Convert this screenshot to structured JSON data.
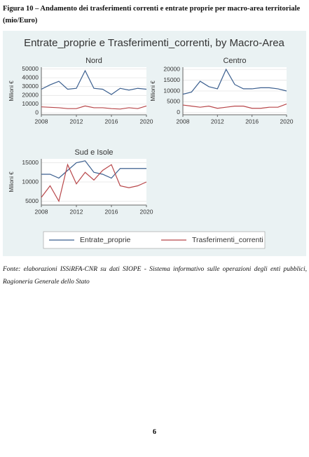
{
  "caption": "Figura 10 – Andamento dei trasferimenti correnti e entrate proprie per macro-area territoriale (mio/Euro)",
  "figure_title": "Entrate_proprie e Trasferimenti_correnti, by Macro-Area",
  "chart_data": [
    {
      "type": "line",
      "title": "Nord",
      "ylabel": "Milioni €",
      "x": [
        2008,
        2009,
        2010,
        2011,
        2012,
        2013,
        2014,
        2015,
        2016,
        2017,
        2018,
        2019,
        2020
      ],
      "xlim": [
        2008,
        2020
      ],
      "xticks": [
        2008,
        2012,
        2016,
        2020
      ],
      "ylim": [
        -2000,
        52000
      ],
      "yticks": [
        0,
        10000,
        20000,
        30000,
        40000,
        50000
      ],
      "series": [
        {
          "name": "Entrate_proprie",
          "color": "#3b5f8f",
          "values": [
            27000,
            32000,
            36000,
            27000,
            28000,
            48000,
            28000,
            27000,
            21000,
            28000,
            26000,
            28000,
            27000
          ]
        },
        {
          "name": "Trasferimenti_correnti",
          "color": "#b8474a",
          "values": [
            7000,
            6500,
            6000,
            5000,
            5000,
            8000,
            6000,
            6000,
            5000,
            4500,
            6000,
            5000,
            8000
          ]
        }
      ]
    },
    {
      "type": "line",
      "title": "Centro",
      "ylabel": "Milioni €",
      "x": [
        2008,
        2009,
        2010,
        2011,
        2012,
        2013,
        2014,
        2015,
        2016,
        2017,
        2018,
        2019,
        2020
      ],
      "xlim": [
        2008,
        2020
      ],
      "xticks": [
        2008,
        2012,
        2016,
        2020
      ],
      "ylim": [
        -1000,
        21000
      ],
      "yticks": [
        0,
        5000,
        10000,
        15000,
        20000
      ],
      "series": [
        {
          "name": "Entrate_proprie",
          "color": "#3b5f8f",
          "values": [
            8500,
            9500,
            14500,
            12000,
            11000,
            20000,
            13000,
            11000,
            11000,
            11500,
            11500,
            11000,
            10000
          ]
        },
        {
          "name": "Trasferimenti_correnti",
          "color": "#b8474a",
          "values": [
            3500,
            3000,
            2500,
            3000,
            2000,
            2500,
            3000,
            3000,
            2000,
            2000,
            2500,
            2500,
            4000
          ]
        }
      ]
    },
    {
      "type": "line",
      "title": "Sud e Isole",
      "ylabel": "Milioni €",
      "x": [
        2008,
        2009,
        2010,
        2011,
        2012,
        2013,
        2014,
        2015,
        2016,
        2017,
        2018,
        2019,
        2020
      ],
      "xlim": [
        2008,
        2020
      ],
      "xticks": [
        2008,
        2012,
        2016,
        2020
      ],
      "ylim": [
        4000,
        16000
      ],
      "yticks": [
        5000,
        10000,
        15000
      ],
      "series": [
        {
          "name": "Entrate_proprie",
          "color": "#3b5f8f",
          "values": [
            12000,
            12000,
            11000,
            13000,
            15000,
            15500,
            12500,
            12000,
            11000,
            13500,
            13500,
            13500,
            13500
          ]
        },
        {
          "name": "Trasferimenti_correnti",
          "color": "#b8474a",
          "values": [
            6000,
            9000,
            5000,
            14500,
            9500,
            12500,
            10500,
            13000,
            14500,
            9000,
            8500,
            9000,
            10000
          ]
        }
      ]
    }
  ],
  "source": "Fonte: elaborazioni ISSiRFA-CNR su dati SIOPE - Sistema informativo sulle operazioni degli enti pubblici, Ragioneria Generale dello Stato",
  "page_number": 6
}
